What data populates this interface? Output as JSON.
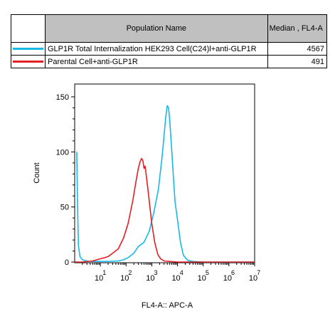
{
  "legend": {
    "header_name": "Population Name",
    "header_median": "Median , FL4-A",
    "rows": [
      {
        "color": "#16b8e8",
        "name": "GLP1R Total Internalization HEK293 Cell(C24)l+anti-GLP1R",
        "median": "4567"
      },
      {
        "color": "#e31e24",
        "name": "Parental Cell+anti-GLP1R",
        "median": "491"
      }
    ]
  },
  "chart_data": {
    "type": "line",
    "title": "",
    "xlabel": "FL4-A:: APC-A",
    "ylabel": "Count",
    "x_scale": "log",
    "xlim": [
      1,
      10000000
    ],
    "ylim": [
      0,
      150
    ],
    "y_ticks": [
      0,
      50,
      100,
      150
    ],
    "x_ticks": [
      {
        "base": "10",
        "exp": "1",
        "value": 10
      },
      {
        "base": "10",
        "exp": "2",
        "value": 100
      },
      {
        "base": "10",
        "exp": "3",
        "value": 1000
      },
      {
        "base": "10",
        "exp": "4",
        "value": 10000
      },
      {
        "base": "10",
        "exp": "5",
        "value": 100000
      },
      {
        "base": "10",
        "exp": "6",
        "value": 1000000
      },
      {
        "base": "10",
        "exp": "7",
        "value": 10000000
      }
    ],
    "series": [
      {
        "name": "GLP1R Total Internalization HEK293 Cell(C24)l+anti-GLP1R",
        "color": "#16b8e8",
        "x": [
          1.2,
          1.3,
          1.4,
          1.6,
          2,
          3,
          5,
          10,
          20,
          50,
          80,
          120,
          200,
          300,
          500,
          800,
          1200,
          1800,
          2500,
          3000,
          3500,
          4000,
          4500,
          5000,
          6000,
          7000,
          8000,
          10000,
          13000,
          17000,
          25000,
          40000,
          100000,
          1000000,
          10000000
        ],
        "values": [
          100,
          50,
          15,
          5,
          2,
          1,
          0.5,
          0.5,
          0.5,
          1,
          2,
          4,
          8,
          14,
          18,
          28,
          45,
          66,
          95,
          115,
          132,
          142,
          140,
          128,
          100,
          75,
          55,
          38,
          18,
          6,
          1.5,
          0.5,
          0,
          0,
          0
        ]
      },
      {
        "name": "Parental Cell+anti-GLP1R",
        "color": "#e31e24",
        "x": [
          1,
          2,
          5,
          10,
          15,
          20,
          30,
          50,
          80,
          120,
          180,
          250,
          300,
          350,
          400,
          450,
          500,
          550,
          600,
          700,
          800,
          1000,
          1300,
          1700,
          2200,
          3000,
          5000,
          10000,
          100000,
          10000000
        ],
        "values": [
          0,
          0,
          1,
          3,
          4,
          5,
          8,
          12,
          22,
          35,
          55,
          75,
          85,
          91,
          94,
          92,
          85,
          87,
          80,
          67,
          55,
          35,
          18,
          7,
          3,
          1,
          0.5,
          0,
          0,
          0
        ]
      }
    ]
  }
}
